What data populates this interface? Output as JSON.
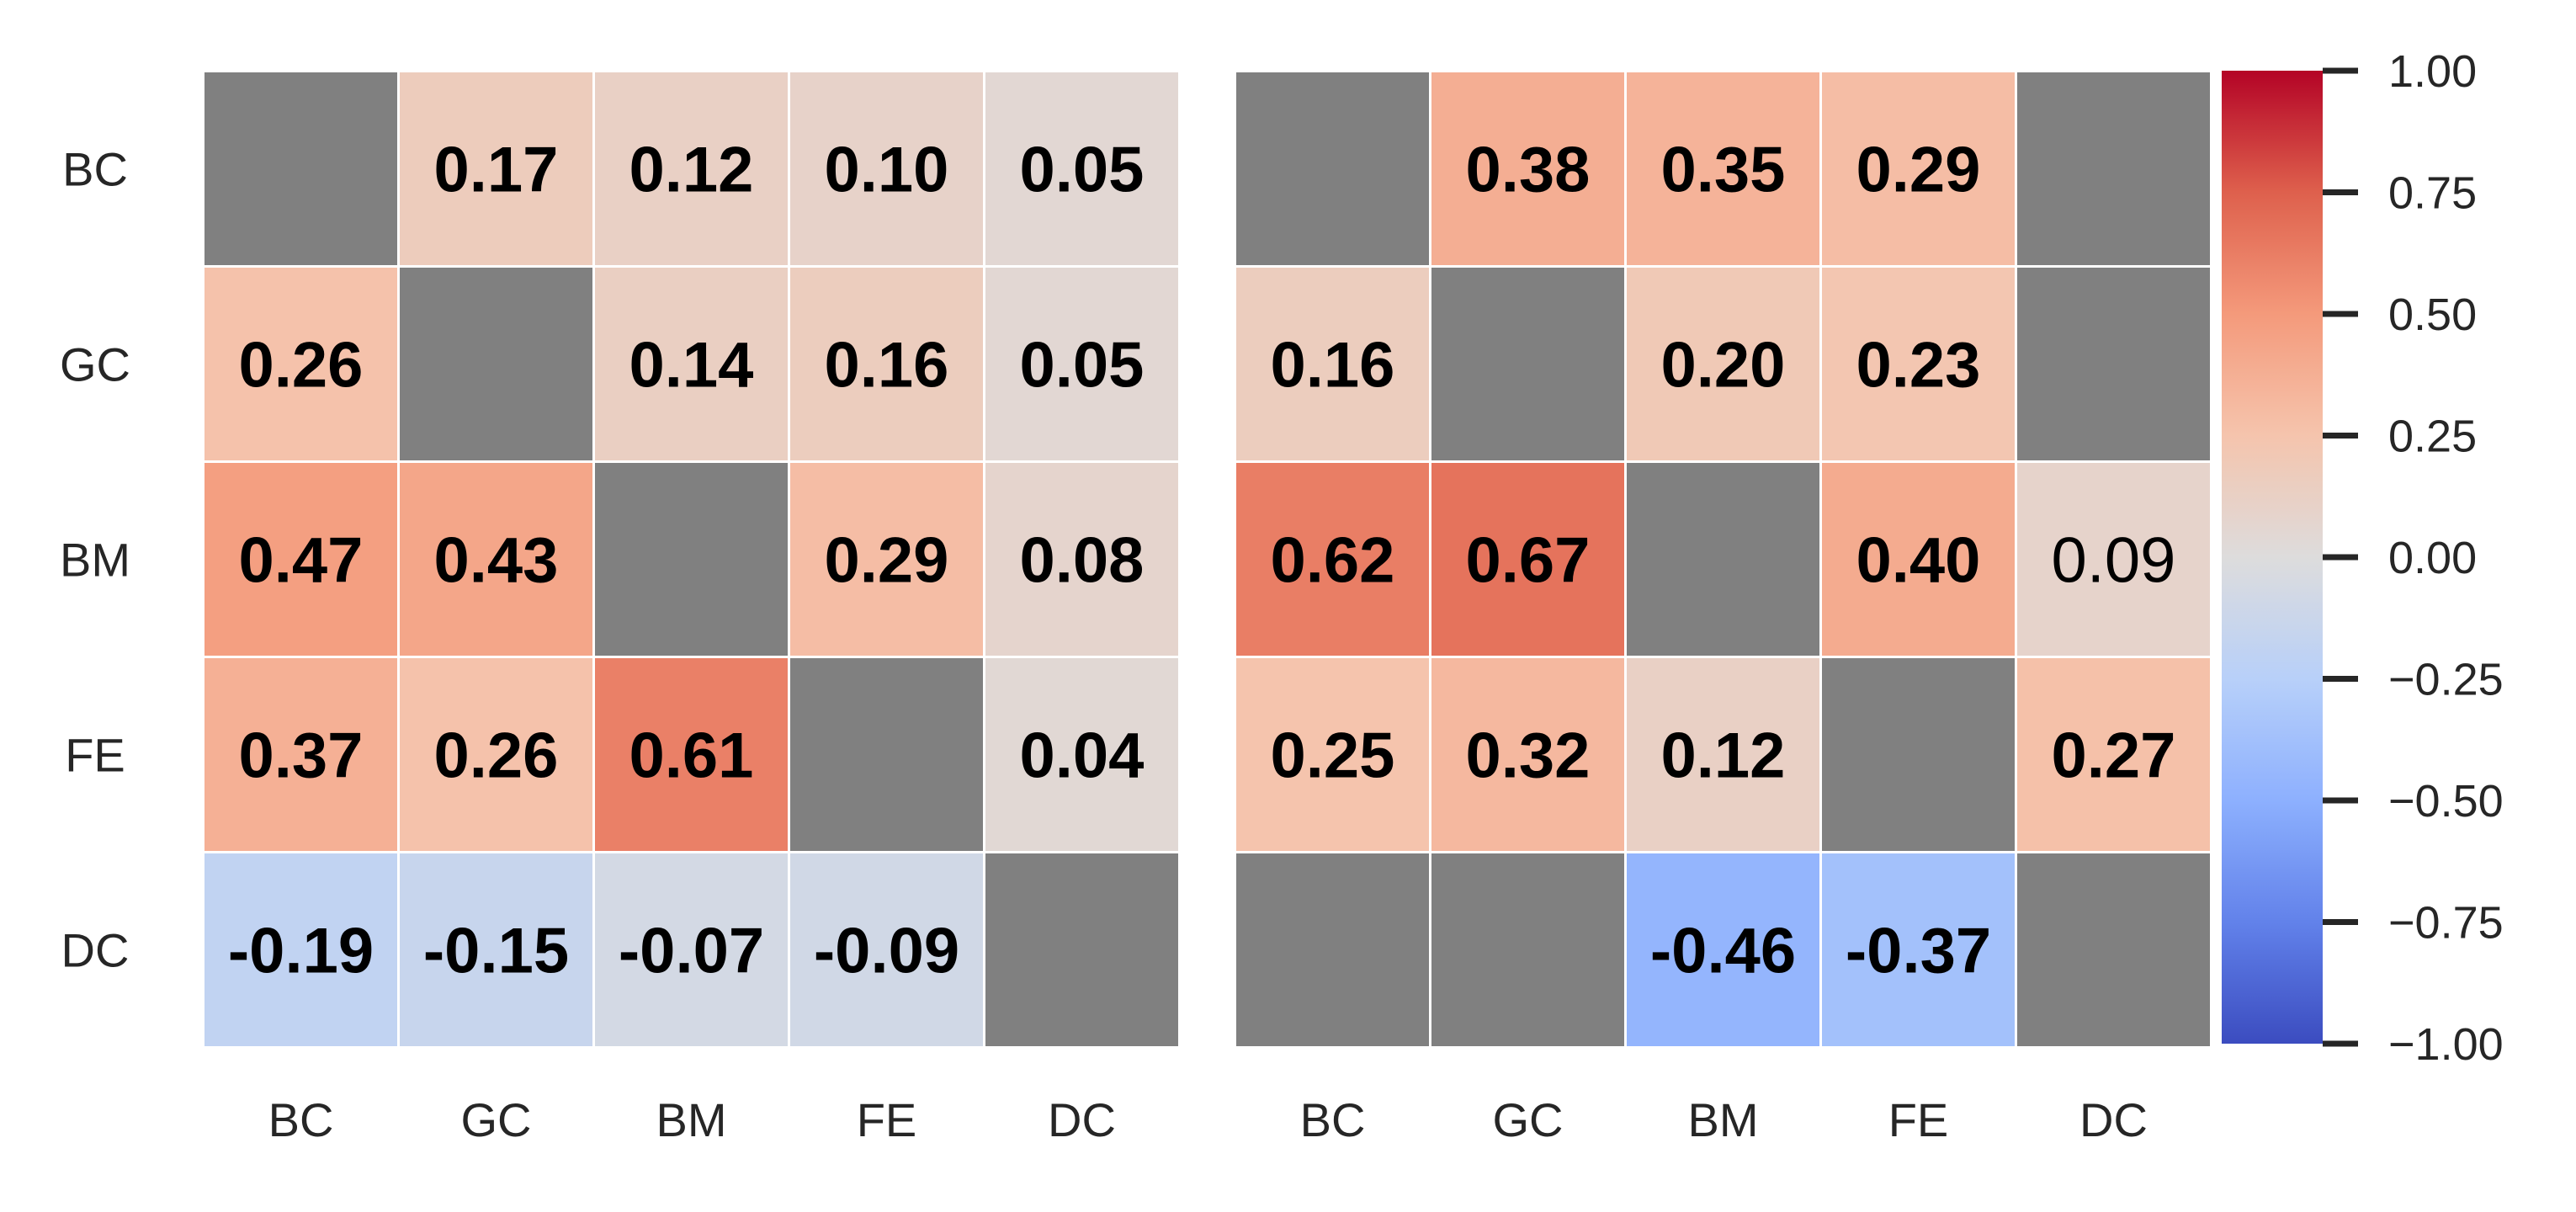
{
  "chart_data": [
    {
      "type": "heatmap",
      "row_labels": [
        "BC",
        "GC",
        "BM",
        "FE",
        "DC"
      ],
      "col_labels": [
        "BC",
        "GC",
        "BM",
        "FE",
        "DC"
      ],
      "values": [
        [
          null,
          0.17,
          0.12,
          0.1,
          0.05
        ],
        [
          0.26,
          null,
          0.14,
          0.16,
          0.05
        ],
        [
          0.47,
          0.43,
          null,
          0.29,
          0.08
        ],
        [
          0.37,
          0.26,
          0.61,
          null,
          0.04
        ],
        [
          -0.19,
          -0.15,
          -0.07,
          -0.09,
          null
        ]
      ],
      "labels": [
        [
          "",
          "0.17",
          "0.12",
          "0.10",
          "0.05"
        ],
        [
          "0.26",
          "",
          "0.14",
          "0.16",
          "0.05"
        ],
        [
          "0.47",
          "0.43",
          "",
          "0.29",
          "0.08"
        ],
        [
          "0.37",
          "0.26",
          "0.61",
          "",
          "0.04"
        ],
        [
          "-0.19",
          "-0.15",
          "-0.07",
          "-0.09",
          ""
        ]
      ],
      "bold": [
        [
          false,
          true,
          true,
          true,
          true
        ],
        [
          true,
          false,
          true,
          true,
          true
        ],
        [
          true,
          true,
          false,
          true,
          true
        ],
        [
          true,
          true,
          true,
          false,
          true
        ],
        [
          true,
          true,
          true,
          true,
          false
        ]
      ],
      "show_row_labels": true,
      "missing_color": "#808080"
    },
    {
      "type": "heatmap",
      "row_labels": [
        "BC",
        "GC",
        "BM",
        "FE",
        "DC"
      ],
      "col_labels": [
        "BC",
        "GC",
        "BM",
        "FE",
        "DC"
      ],
      "values": [
        [
          null,
          0.38,
          0.35,
          0.29,
          null
        ],
        [
          0.16,
          null,
          0.2,
          0.23,
          null
        ],
        [
          0.62,
          0.67,
          null,
          0.4,
          0.09
        ],
        [
          0.25,
          0.32,
          0.12,
          null,
          0.27
        ],
        [
          null,
          null,
          -0.46,
          -0.37,
          null
        ]
      ],
      "labels": [
        [
          "",
          "0.38",
          "0.35",
          "0.29",
          ""
        ],
        [
          "0.16",
          "",
          "0.20",
          "0.23",
          ""
        ],
        [
          "0.62",
          "0.67",
          "",
          "0.40",
          "0.09"
        ],
        [
          "0.25",
          "0.32",
          "0.12",
          "",
          "0.27"
        ],
        [
          "",
          "",
          "-0.46",
          "-0.37",
          ""
        ]
      ],
      "bold": [
        [
          false,
          true,
          true,
          true,
          false
        ],
        [
          true,
          false,
          true,
          true,
          false
        ],
        [
          true,
          true,
          false,
          true,
          false
        ],
        [
          true,
          true,
          true,
          false,
          true
        ],
        [
          false,
          false,
          true,
          true,
          false
        ]
      ],
      "show_row_labels": false,
      "missing_color": "#808080"
    }
  ],
  "colorbar": {
    "colormap": "coolwarm",
    "vmin": -1.0,
    "vmax": 1.0,
    "ticks": [
      1.0,
      0.75,
      0.5,
      0.25,
      0.0,
      -0.25,
      -0.5,
      -0.75,
      -1.0
    ],
    "tick_labels": [
      "1.00",
      "0.75",
      "0.50",
      "0.25",
      "0.00",
      "−0.25",
      "−0.50",
      "−0.75",
      "−1.00"
    ]
  }
}
